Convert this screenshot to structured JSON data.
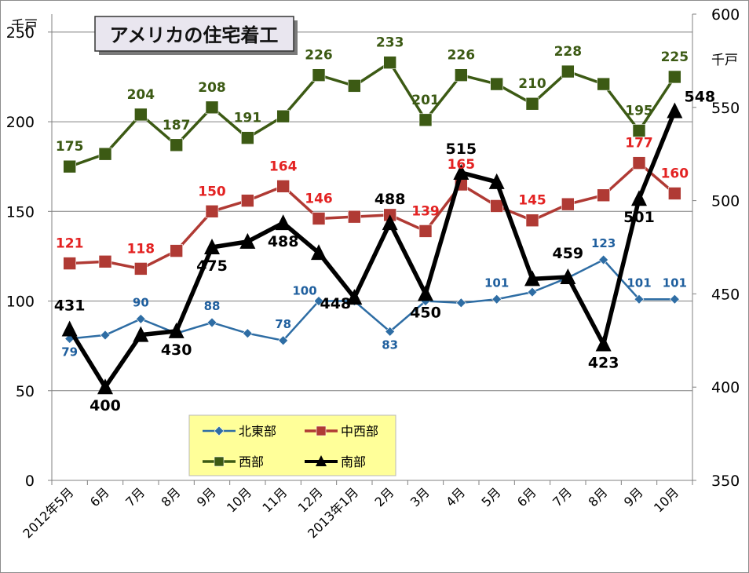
{
  "chart_data": {
    "type": "line",
    "title": "アメリカの住宅着工",
    "left_axis": {
      "unit": "千戸",
      "ylim": [
        0,
        260
      ],
      "ticks": [
        0,
        50,
        100,
        150,
        200,
        250
      ],
      "tick_labels": [
        "0",
        "50",
        "100",
        "150",
        "200",
        "250"
      ]
    },
    "right_axis": {
      "unit": "千戸",
      "ylim": [
        350,
        600
      ],
      "ticks": [
        350,
        400,
        450,
        500,
        550,
        600
      ],
      "tick_labels": [
        "350",
        "400",
        "450",
        "500",
        "550",
        "600"
      ]
    },
    "grid": true,
    "legend_position": "bottom-left",
    "categories": [
      "2012年5月",
      "6月",
      "7月",
      "8月",
      "9月",
      "10月",
      "11月",
      "12月",
      "2013年1月",
      "2月",
      "3月",
      "4月",
      "5月",
      "6月",
      "7月",
      "8月",
      "9月",
      "10月"
    ],
    "series": [
      {
        "name": "北東部",
        "axis": "left",
        "color": "#2E6DA4",
        "marker": "diamond",
        "values": [
          79,
          81,
          90,
          82,
          88,
          82,
          78,
          100,
          100,
          83,
          100,
          99,
          101,
          105,
          113,
          123,
          101,
          101
        ],
        "labels": [
          "79",
          "",
          "90",
          "",
          "88",
          "",
          "78",
          "100",
          "",
          "83",
          "",
          "",
          "101",
          "",
          "",
          "123",
          "101",
          "101"
        ]
      },
      {
        "name": "中西部",
        "axis": "left",
        "color": "#B03A34",
        "marker": "square",
        "values": [
          121,
          122,
          118,
          128,
          150,
          156,
          164,
          146,
          147,
          148,
          139,
          165,
          153,
          145,
          154,
          159,
          177,
          160
        ],
        "labels": [
          "121",
          "",
          "118",
          "",
          "150",
          "",
          "164",
          "146",
          "",
          "",
          "139",
          "165",
          "",
          "145",
          "",
          "",
          "177",
          "160"
        ]
      },
      {
        "name": "西部",
        "axis": "left",
        "color": "#3C5A14",
        "marker": "square",
        "values": [
          175,
          182,
          204,
          187,
          208,
          191,
          203,
          226,
          220,
          233,
          201,
          226,
          221,
          210,
          228,
          221,
          195,
          225
        ],
        "labels": [
          "175",
          "",
          "204",
          "187",
          "208",
          "191",
          "",
          "226",
          "",
          "233",
          "201",
          "226",
          "",
          "210",
          "228",
          "",
          "195",
          "225"
        ]
      },
      {
        "name": "南部",
        "axis": "right",
        "color": "#000000",
        "marker": "triangle",
        "values": [
          431,
          400,
          428,
          430,
          475,
          478,
          488,
          472,
          448,
          488,
          450,
          515,
          510,
          458,
          459,
          423,
          501,
          548
        ],
        "labels": [
          "431",
          "400",
          "",
          "430",
          "475",
          "",
          "488",
          "",
          "448",
          "488",
          "450",
          "515",
          "",
          "",
          "459",
          "423",
          "501",
          "548"
        ]
      }
    ]
  }
}
